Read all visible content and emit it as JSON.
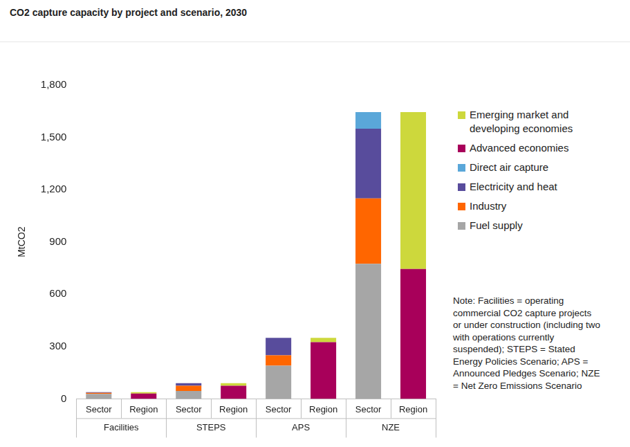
{
  "chart_data": {
    "type": "bar",
    "title": "CO2 capture capacity by project and scenario, 2030",
    "y_label": "MtCO2",
    "categories": [
      "Sector",
      "Region",
      "Sector",
      "Region",
      "Sector",
      "Region",
      "Sector",
      "Region"
    ],
    "category_groups": [
      "Facilities",
      "STEPS",
      "APS",
      "NZE"
    ],
    "series": [
      {
        "name": "Fuel supply",
        "color": "#a6a6a6",
        "values": [
          28,
          null,
          45,
          null,
          190,
          null,
          775,
          null
        ]
      },
      {
        "name": "Industry",
        "color": "#ff6600",
        "values": [
          6,
          null,
          30,
          null,
          60,
          null,
          375,
          null
        ]
      },
      {
        "name": "Electricity and heat",
        "color": "#584c9c",
        "values": [
          4,
          null,
          15,
          null,
          100,
          null,
          400,
          null
        ]
      },
      {
        "name": "Direct air capture",
        "color": "#5aa7d9",
        "values": [
          null,
          null,
          null,
          null,
          null,
          null,
          95,
          null
        ]
      },
      {
        "name": "Advanced economies",
        "color": "#a8005a",
        "values": [
          null,
          30,
          null,
          75,
          null,
          325,
          null,
          745
        ]
      },
      {
        "name": "Emerging market and developing economies",
        "color": "#cdd83c",
        "values": [
          null,
          8,
          null,
          15,
          null,
          25,
          null,
          900
        ]
      }
    ],
    "stacked": true,
    "legend": "right",
    "grid": false,
    "ylim": [
      0,
      1800
    ],
    "yticks": [
      0,
      300,
      600,
      900,
      {
        "value": 1200,
        "label": "1,200"
      },
      {
        "value": 1500,
        "label": "1,500"
      },
      {
        "value": 1800,
        "label": "1,800"
      }
    ],
    "note": "Note: Facilities = operating commercial CO2 capture projects or under construction (including two with operations currently suspended); STEPS = Stated Energy Policies Scenario; APS = Announced Pledges Scenario; NZE = Net Zero Emissions Scenario"
  }
}
